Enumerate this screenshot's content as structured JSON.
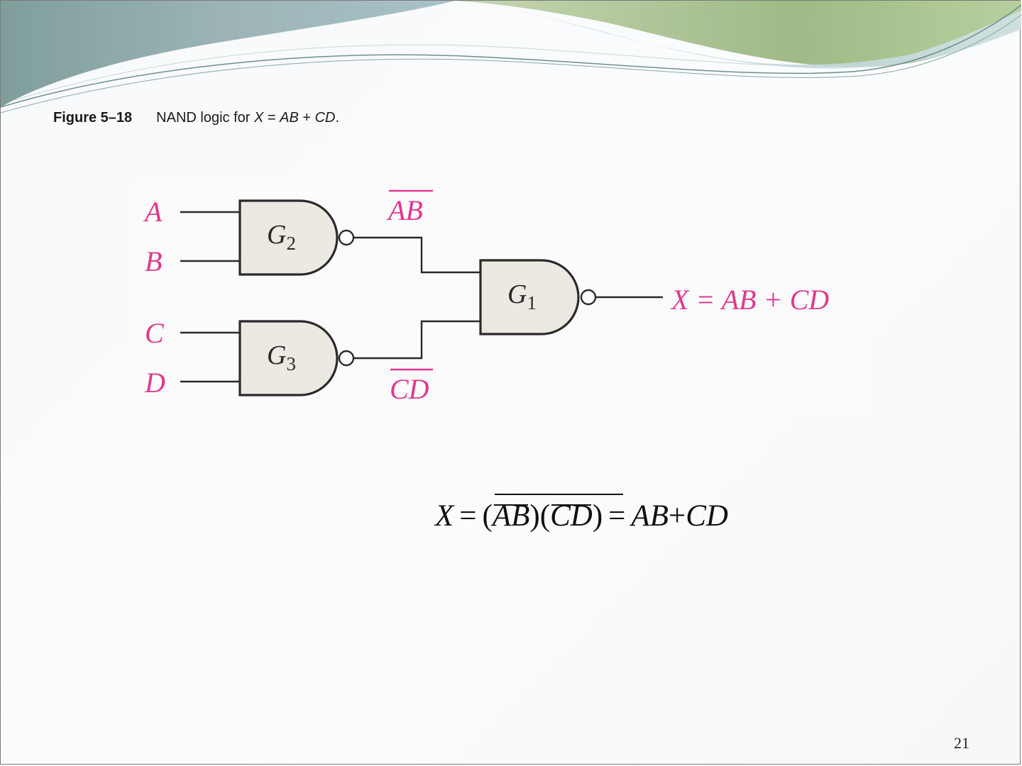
{
  "caption": {
    "figure_number": "Figure 5–18",
    "text_prefix": "NAND logic for ",
    "x": "X",
    "eq": " = ",
    "ab": "AB",
    "plus": " + ",
    "cd": "CD",
    "period": "."
  },
  "diagram": {
    "inputs": [
      "A",
      "B",
      "C",
      "D"
    ],
    "intermediate_outputs": [
      "AB",
      "CD"
    ],
    "gates": [
      {
        "name": "G",
        "subscript": "2"
      },
      {
        "name": "G",
        "subscript": "3"
      },
      {
        "name": "G",
        "subscript": "1"
      }
    ],
    "output_label": "X = AB + CD",
    "colors": {
      "signal_labels": "#e0398f",
      "gate_fill": "#ece9e2",
      "gate_stroke": "#2a2a2a",
      "wires": "#2a2a2a"
    }
  },
  "equation": {
    "lhs": "X",
    "equals": "=",
    "open_paren_1": "(",
    "term1": "AB",
    "close_paren_1": ")",
    "open_paren_2": "(",
    "term2": "CD",
    "close_paren_2": ")",
    "equals_2": "=",
    "ab": "AB",
    "plus": "+",
    "cd": "CD"
  },
  "page_number": "21",
  "theme": {
    "wave_dark": "#8fa8a8",
    "wave_light": "#b9d3de",
    "wave_green": "#a9c08f"
  }
}
